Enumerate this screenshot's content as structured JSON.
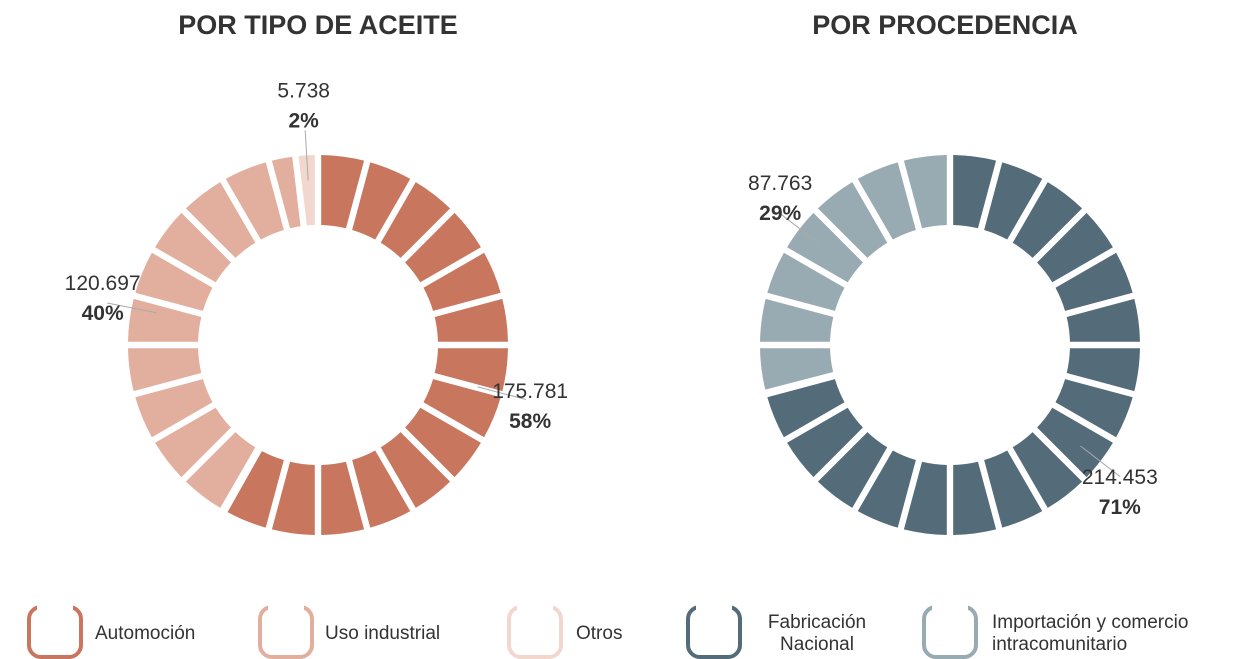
{
  "chart_data": [
    {
      "type": "pie",
      "title": "POR TIPO DE ACEITE",
      "categories": [
        "Automoción",
        "Uso industrial",
        "Otros"
      ],
      "values": [
        175781,
        120697,
        5738
      ],
      "value_labels": [
        "175.781",
        "120.697",
        "5.738"
      ],
      "percents": [
        58,
        40,
        2
      ],
      "percent_labels": [
        "58%",
        "40%",
        "2%"
      ],
      "colors": [
        "#c8765e",
        "#e2ae9e",
        "#f1d7ce"
      ]
    },
    {
      "type": "pie",
      "title": "POR PROCEDENCIA",
      "categories": [
        "Fabricación Nacional",
        "Importación y comercio intracomunitario"
      ],
      "values": [
        214453,
        87763
      ],
      "value_labels": [
        "214.453",
        "87.763"
      ],
      "percents": [
        71,
        29
      ],
      "percent_labels": [
        "71%",
        "29%"
      ],
      "colors": [
        "#546b79",
        "#98aab2"
      ]
    }
  ]
}
